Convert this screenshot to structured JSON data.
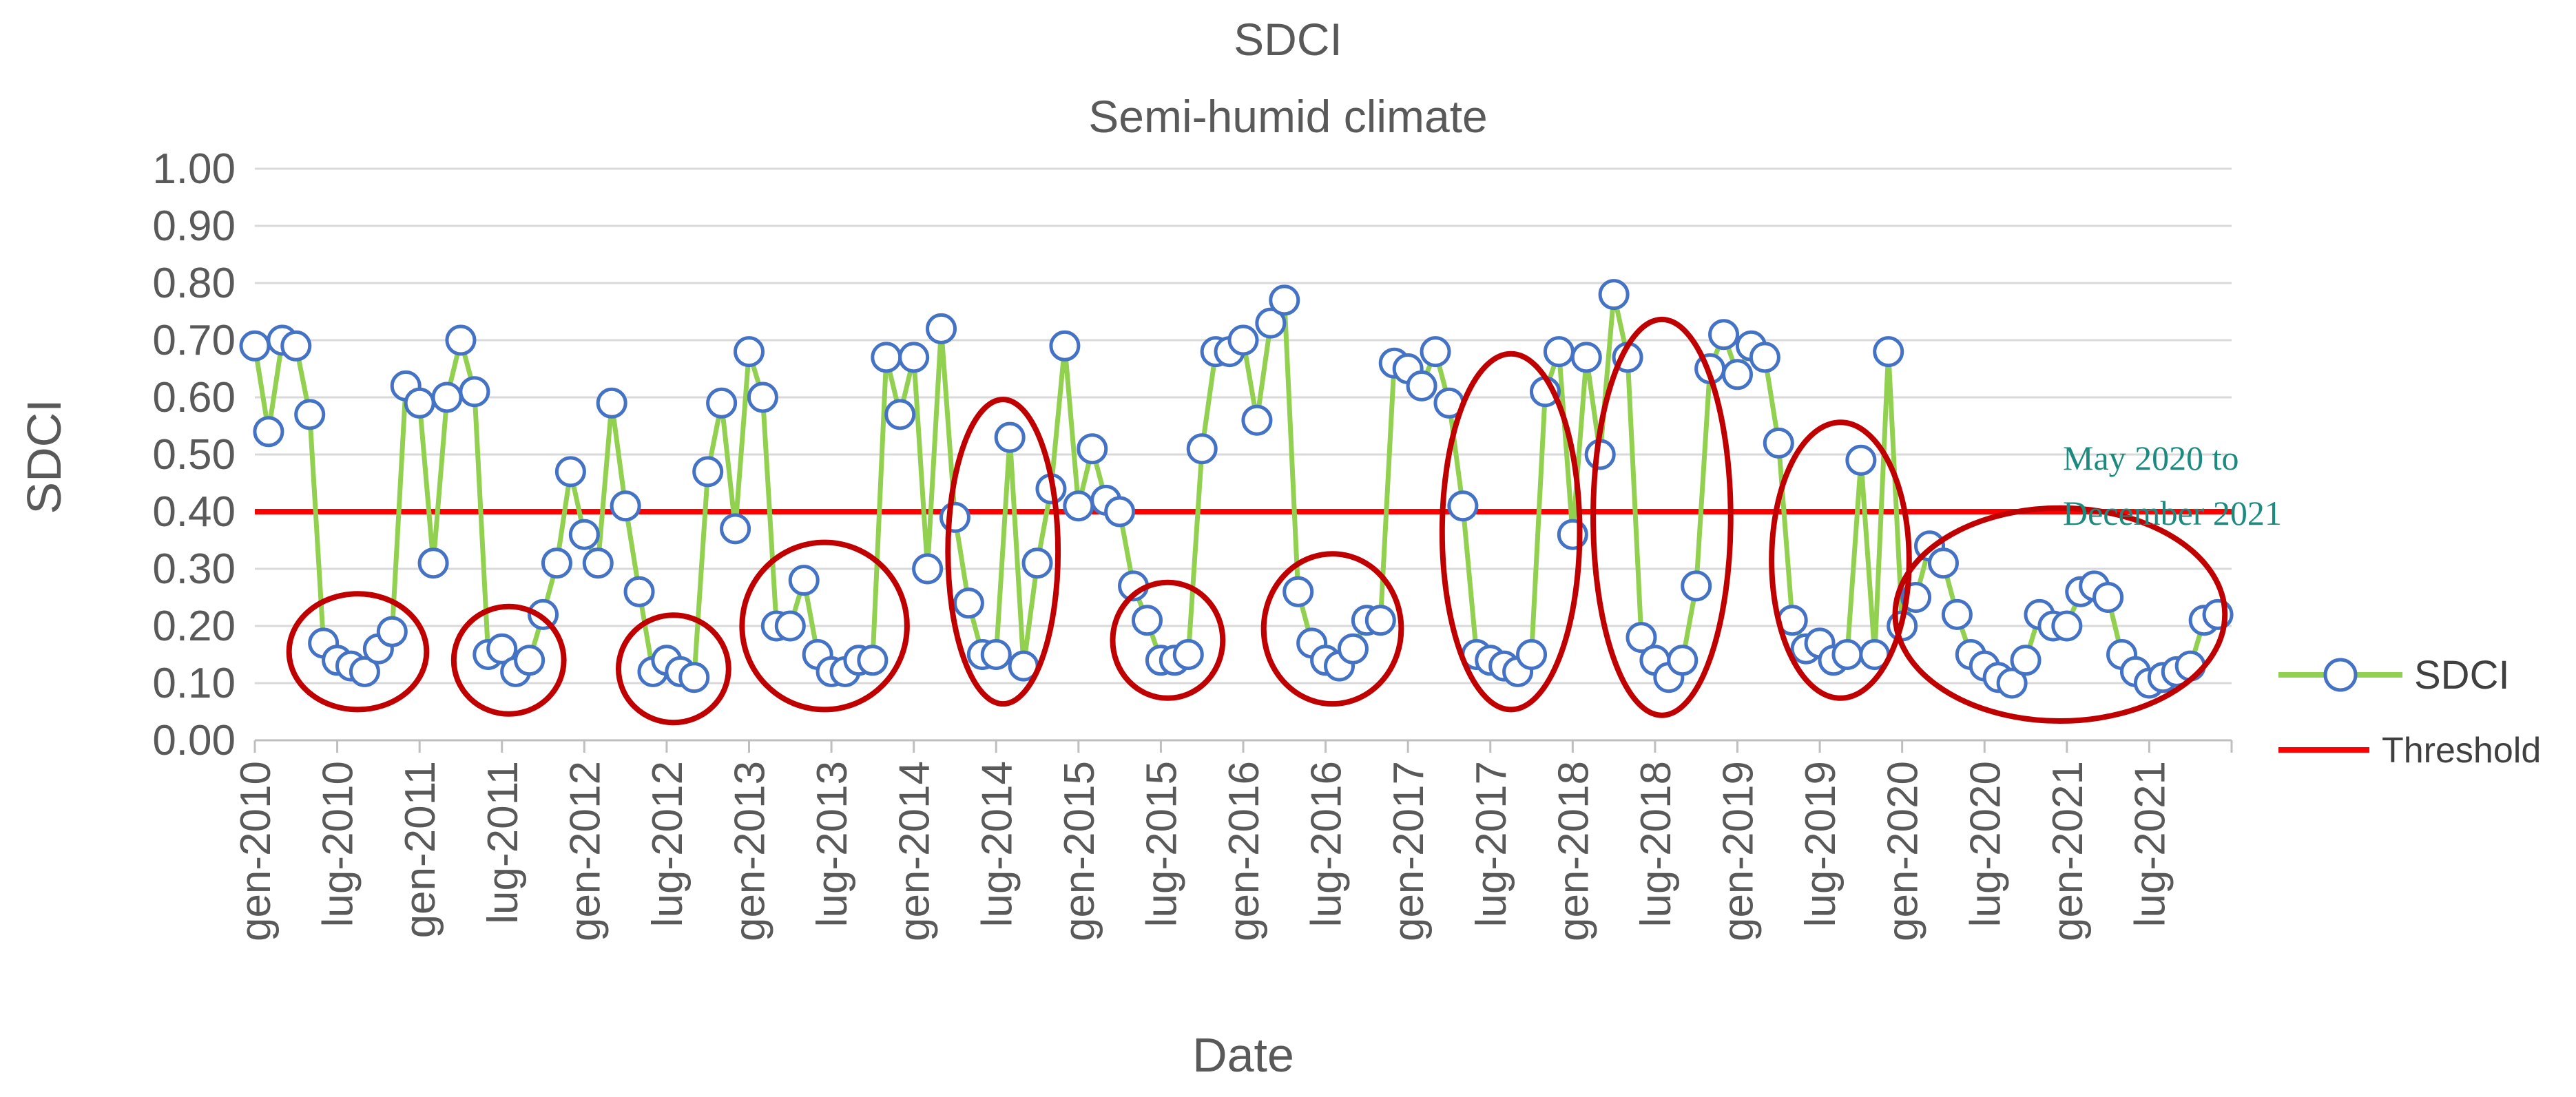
{
  "chart_data": {
    "type": "line",
    "title": "SDCI",
    "subtitle": "Semi-humid climate",
    "xlabel": "Date",
    "ylabel": "SDCI",
    "ylim": [
      0,
      1
    ],
    "yticks": [
      "0.00",
      "0.10",
      "0.20",
      "0.30",
      "0.40",
      "0.50",
      "0.60",
      "0.70",
      "0.80",
      "0.90",
      "1.00"
    ],
    "xticks": [
      {
        "month_index": 0,
        "label": "gen-2010"
      },
      {
        "month_index": 6,
        "label": "lug-2010"
      },
      {
        "month_index": 12,
        "label": "gen-2011"
      },
      {
        "month_index": 18,
        "label": "lug-2011"
      },
      {
        "month_index": 24,
        "label": "gen-2012"
      },
      {
        "month_index": 30,
        "label": "lug-2012"
      },
      {
        "month_index": 36,
        "label": "gen-2013"
      },
      {
        "month_index": 42,
        "label": "lug-2013"
      },
      {
        "month_index": 48,
        "label": "gen-2014"
      },
      {
        "month_index": 54,
        "label": "lug-2014"
      },
      {
        "month_index": 60,
        "label": "gen-2015"
      },
      {
        "month_index": 66,
        "label": "lug-2015"
      },
      {
        "month_index": 72,
        "label": "gen-2016"
      },
      {
        "month_index": 78,
        "label": "lug-2016"
      },
      {
        "month_index": 84,
        "label": "gen-2017"
      },
      {
        "month_index": 90,
        "label": "lug-2017"
      },
      {
        "month_index": 96,
        "label": "gen-2018"
      },
      {
        "month_index": 102,
        "label": "lug-2018"
      },
      {
        "month_index": 108,
        "label": "gen-2019"
      },
      {
        "month_index": 114,
        "label": "lug-2019"
      },
      {
        "month_index": 120,
        "label": "gen-2020"
      },
      {
        "month_index": 126,
        "label": "lug-2020"
      },
      {
        "month_index": 132,
        "label": "gen-2021"
      },
      {
        "month_index": 138,
        "label": "lug-2021"
      }
    ],
    "series": [
      {
        "name": "SDCI",
        "color": "#92d050",
        "marker_edge": "#4472c4",
        "values": [
          0.69,
          0.54,
          0.7,
          0.69,
          0.57,
          0.17,
          0.14,
          0.13,
          0.12,
          0.16,
          0.19,
          0.62,
          0.59,
          0.31,
          0.6,
          0.7,
          0.61,
          0.15,
          0.16,
          0.12,
          0.14,
          0.22,
          0.31,
          0.47,
          0.36,
          0.31,
          0.59,
          0.41,
          0.26,
          0.12,
          0.14,
          0.12,
          0.11,
          0.47,
          0.59,
          0.37,
          0.68,
          0.6,
          0.2,
          0.2,
          0.28,
          0.15,
          0.12,
          0.12,
          0.14,
          0.14,
          0.67,
          0.57,
          0.67,
          0.3,
          0.72,
          0.39,
          0.24,
          0.15,
          0.15,
          0.53,
          0.13,
          0.31,
          0.44,
          0.69,
          0.41,
          0.51,
          0.42,
          0.4,
          0.27,
          0.21,
          0.14,
          0.14,
          0.15,
          0.51,
          0.68,
          0.68,
          0.7,
          0.56,
          0.73,
          0.77,
          0.26,
          0.17,
          0.14,
          0.13,
          0.16,
          0.21,
          0.21,
          0.66,
          0.65,
          0.62,
          0.68,
          0.59,
          0.41,
          0.15,
          0.14,
          0.13,
          0.12,
          0.15,
          0.61,
          0.68,
          0.36,
          0.67,
          0.5,
          0.78,
          0.67,
          0.18,
          0.14,
          0.11,
          0.14,
          0.27,
          0.65,
          0.71,
          0.64,
          0.69,
          0.67,
          0.52,
          0.21,
          0.16,
          0.17,
          0.14,
          0.15,
          0.49,
          0.15,
          0.68,
          0.2,
          0.25,
          0.34,
          0.31,
          0.22,
          0.15,
          0.13,
          0.11,
          0.1,
          0.14,
          0.22,
          0.2,
          0.2,
          0.26,
          0.27,
          0.25,
          0.15,
          0.12,
          0.1,
          0.11,
          0.12,
          0.13,
          0.21,
          0.22
        ]
      },
      {
        "name": "Threshold",
        "color": "#ff0000",
        "value": 0.4
      }
    ],
    "highlight_ellipses_month_ranges": [
      [
        5,
        10
      ],
      [
        17,
        20
      ],
      [
        29,
        32
      ],
      [
        38,
        45
      ],
      [
        53,
        56
      ],
      [
        65,
        68
      ],
      [
        76,
        81
      ],
      [
        89,
        94
      ],
      [
        100,
        105
      ],
      [
        113,
        118
      ],
      [
        122,
        141
      ]
    ],
    "annotation": {
      "lines": [
        "May 2020  to",
        "December 2021"
      ],
      "color": "#1d8a80"
    },
    "legend": {
      "placement": "right",
      "items": [
        {
          "label": "SDCI",
          "kind": "marker-line"
        },
        {
          "label": "Threshold",
          "kind": "line"
        }
      ]
    },
    "ellipse_color": "#c00000"
  }
}
